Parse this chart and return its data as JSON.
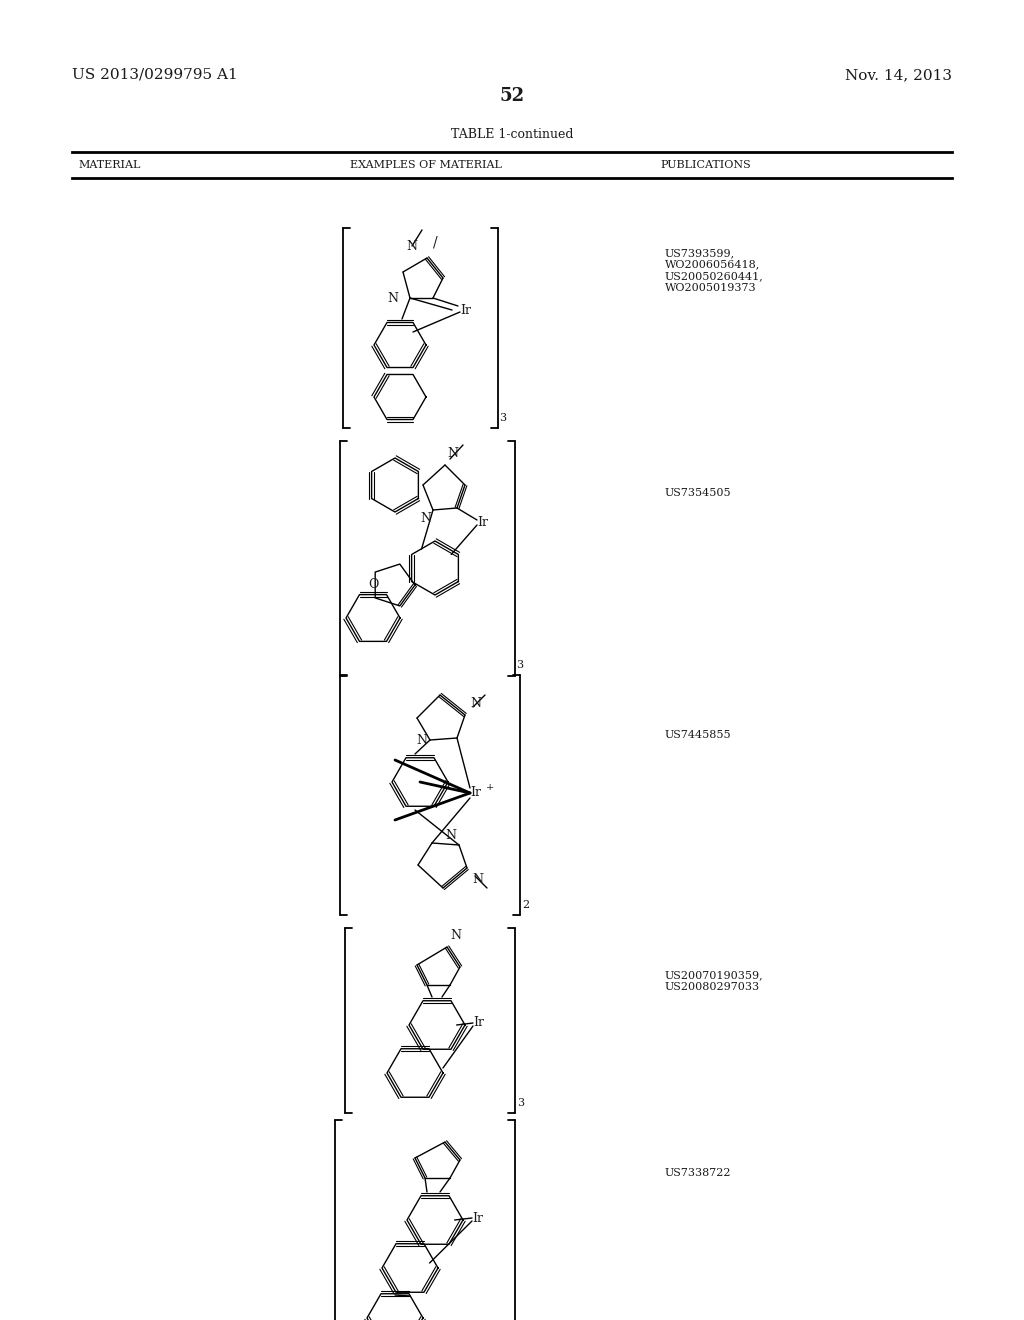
{
  "background_color": "#ffffff",
  "header_left": "US 2013/0299795 A1",
  "header_right": "Nov. 14, 2013",
  "page_number": "52",
  "table_title": "TABLE 1-continued",
  "col1_header": "MATERIAL",
  "col2_header": "EXAMPLES OF MATERIAL",
  "col3_header": "PUBLICATIONS",
  "pub1": "US7393599,\nWO2006056418,\nUS20050260441,\nWO2005019373",
  "pub2": "US7354505",
  "pub3": "US7445855",
  "pub4": "US20070190359,\nUS20080297033",
  "pub5": "US7338722",
  "line_color": "#000000",
  "text_color": "#1a1a1a"
}
